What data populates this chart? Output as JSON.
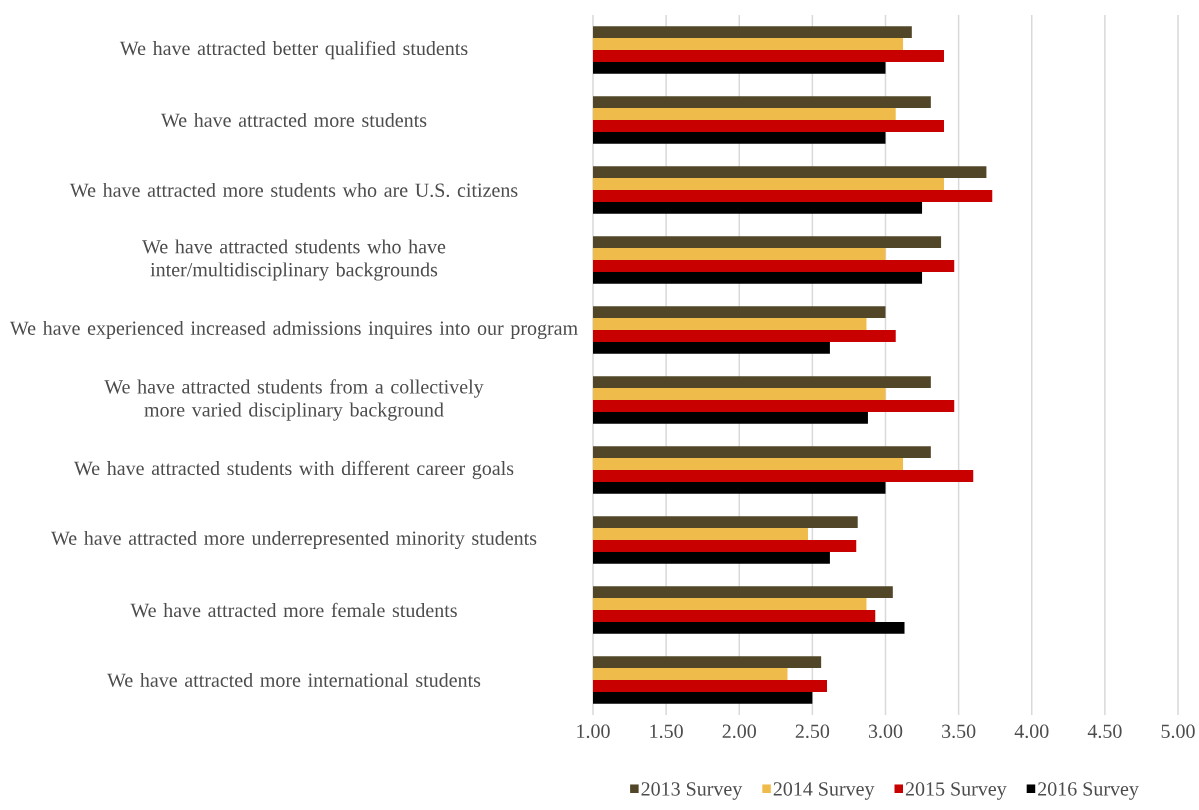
{
  "chart_data": {
    "type": "bar",
    "orientation": "horizontal",
    "categories": [
      "We have attracted better qualified students",
      "We have attracted more students",
      "We have attracted more students who are U.S. citizens",
      "We have attracted students who have inter/multidisciplinary backgrounds",
      "We have experienced increased admissions inquires into our program",
      "We have attracted students from a collectively more varied disciplinary background",
      "We have attracted students with different career goals",
      "We have attracted more underrepresented minority students",
      "We have attracted more female students",
      "We have attracted more international students"
    ],
    "series": [
      {
        "name": "2013 Survey",
        "color": "#524629",
        "values": [
          3.18,
          3.31,
          3.69,
          3.38,
          3.0,
          3.31,
          3.31,
          2.81,
          3.05,
          2.56
        ]
      },
      {
        "name": "2014 Survey",
        "color": "#efbc4b",
        "values": [
          3.12,
          3.07,
          3.4,
          3.0,
          2.87,
          3.0,
          3.12,
          2.47,
          2.87,
          2.33
        ]
      },
      {
        "name": "2015 Survey",
        "color": "#c80000",
        "values": [
          3.4,
          3.4,
          3.73,
          3.47,
          3.07,
          3.47,
          3.6,
          2.8,
          2.93,
          2.6
        ]
      },
      {
        "name": "2016 Survey",
        "color": "#000000",
        "values": [
          3.0,
          3.0,
          3.25,
          3.25,
          2.62,
          2.88,
          3.0,
          2.62,
          3.13,
          2.5
        ]
      }
    ],
    "xlim": [
      1,
      5
    ],
    "xticks": [
      {
        "value": 1,
        "label": "1.00"
      },
      {
        "value": 1.5,
        "label": "1.50"
      },
      {
        "value": 2,
        "label": "2.00"
      },
      {
        "value": 2.5,
        "label": "2.50"
      },
      {
        "value": 3,
        "label": "3.00"
      },
      {
        "value": 3.5,
        "label": "3.50"
      },
      {
        "value": 4,
        "label": "4.00"
      },
      {
        "value": 4.5,
        "label": "4.50"
      },
      {
        "value": 5,
        "label": "5.00"
      }
    ],
    "grid": "x",
    "legend": "bottom"
  }
}
